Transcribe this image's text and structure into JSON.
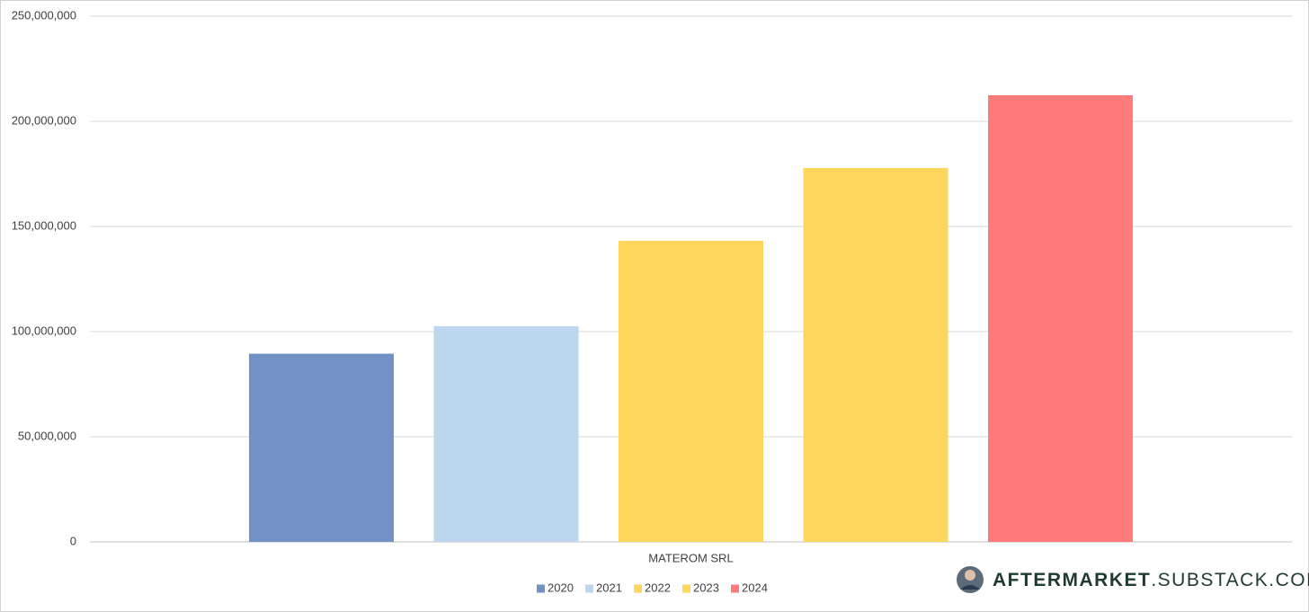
{
  "chart_data": {
    "type": "bar",
    "categories": [
      "MATEROM SRL"
    ],
    "series": [
      {
        "name": "2020",
        "color": "#7291c5",
        "values": [
          89500000
        ]
      },
      {
        "name": "2021",
        "color": "#bdd7ee",
        "values": [
          102600000
        ]
      },
      {
        "name": "2022",
        "color": "#ffd65c",
        "values": [
          143200000
        ]
      },
      {
        "name": "2023",
        "color": "#ffd65c",
        "values": [
          177800000
        ]
      },
      {
        "name": "2024",
        "color": "#ff7b7b",
        "values": [
          212400000
        ]
      }
    ],
    "ylim": [
      0,
      250000000
    ],
    "yticks": [
      0,
      {
        "value": 50000000,
        "label": "50,000,000"
      },
      {
        "value": 100000000,
        "label": "100,000,000"
      },
      {
        "value": 150000000,
        "label": "150,000,000"
      },
      {
        "value": 200000000,
        "label": "200,000,000"
      },
      {
        "value": 250000000,
        "label": "250,000,000"
      }
    ],
    "grid": true,
    "legend": "bottom"
  },
  "watermark": {
    "bold": "AFTERMARKET",
    "rest": ".SUBSTACK.COM"
  }
}
